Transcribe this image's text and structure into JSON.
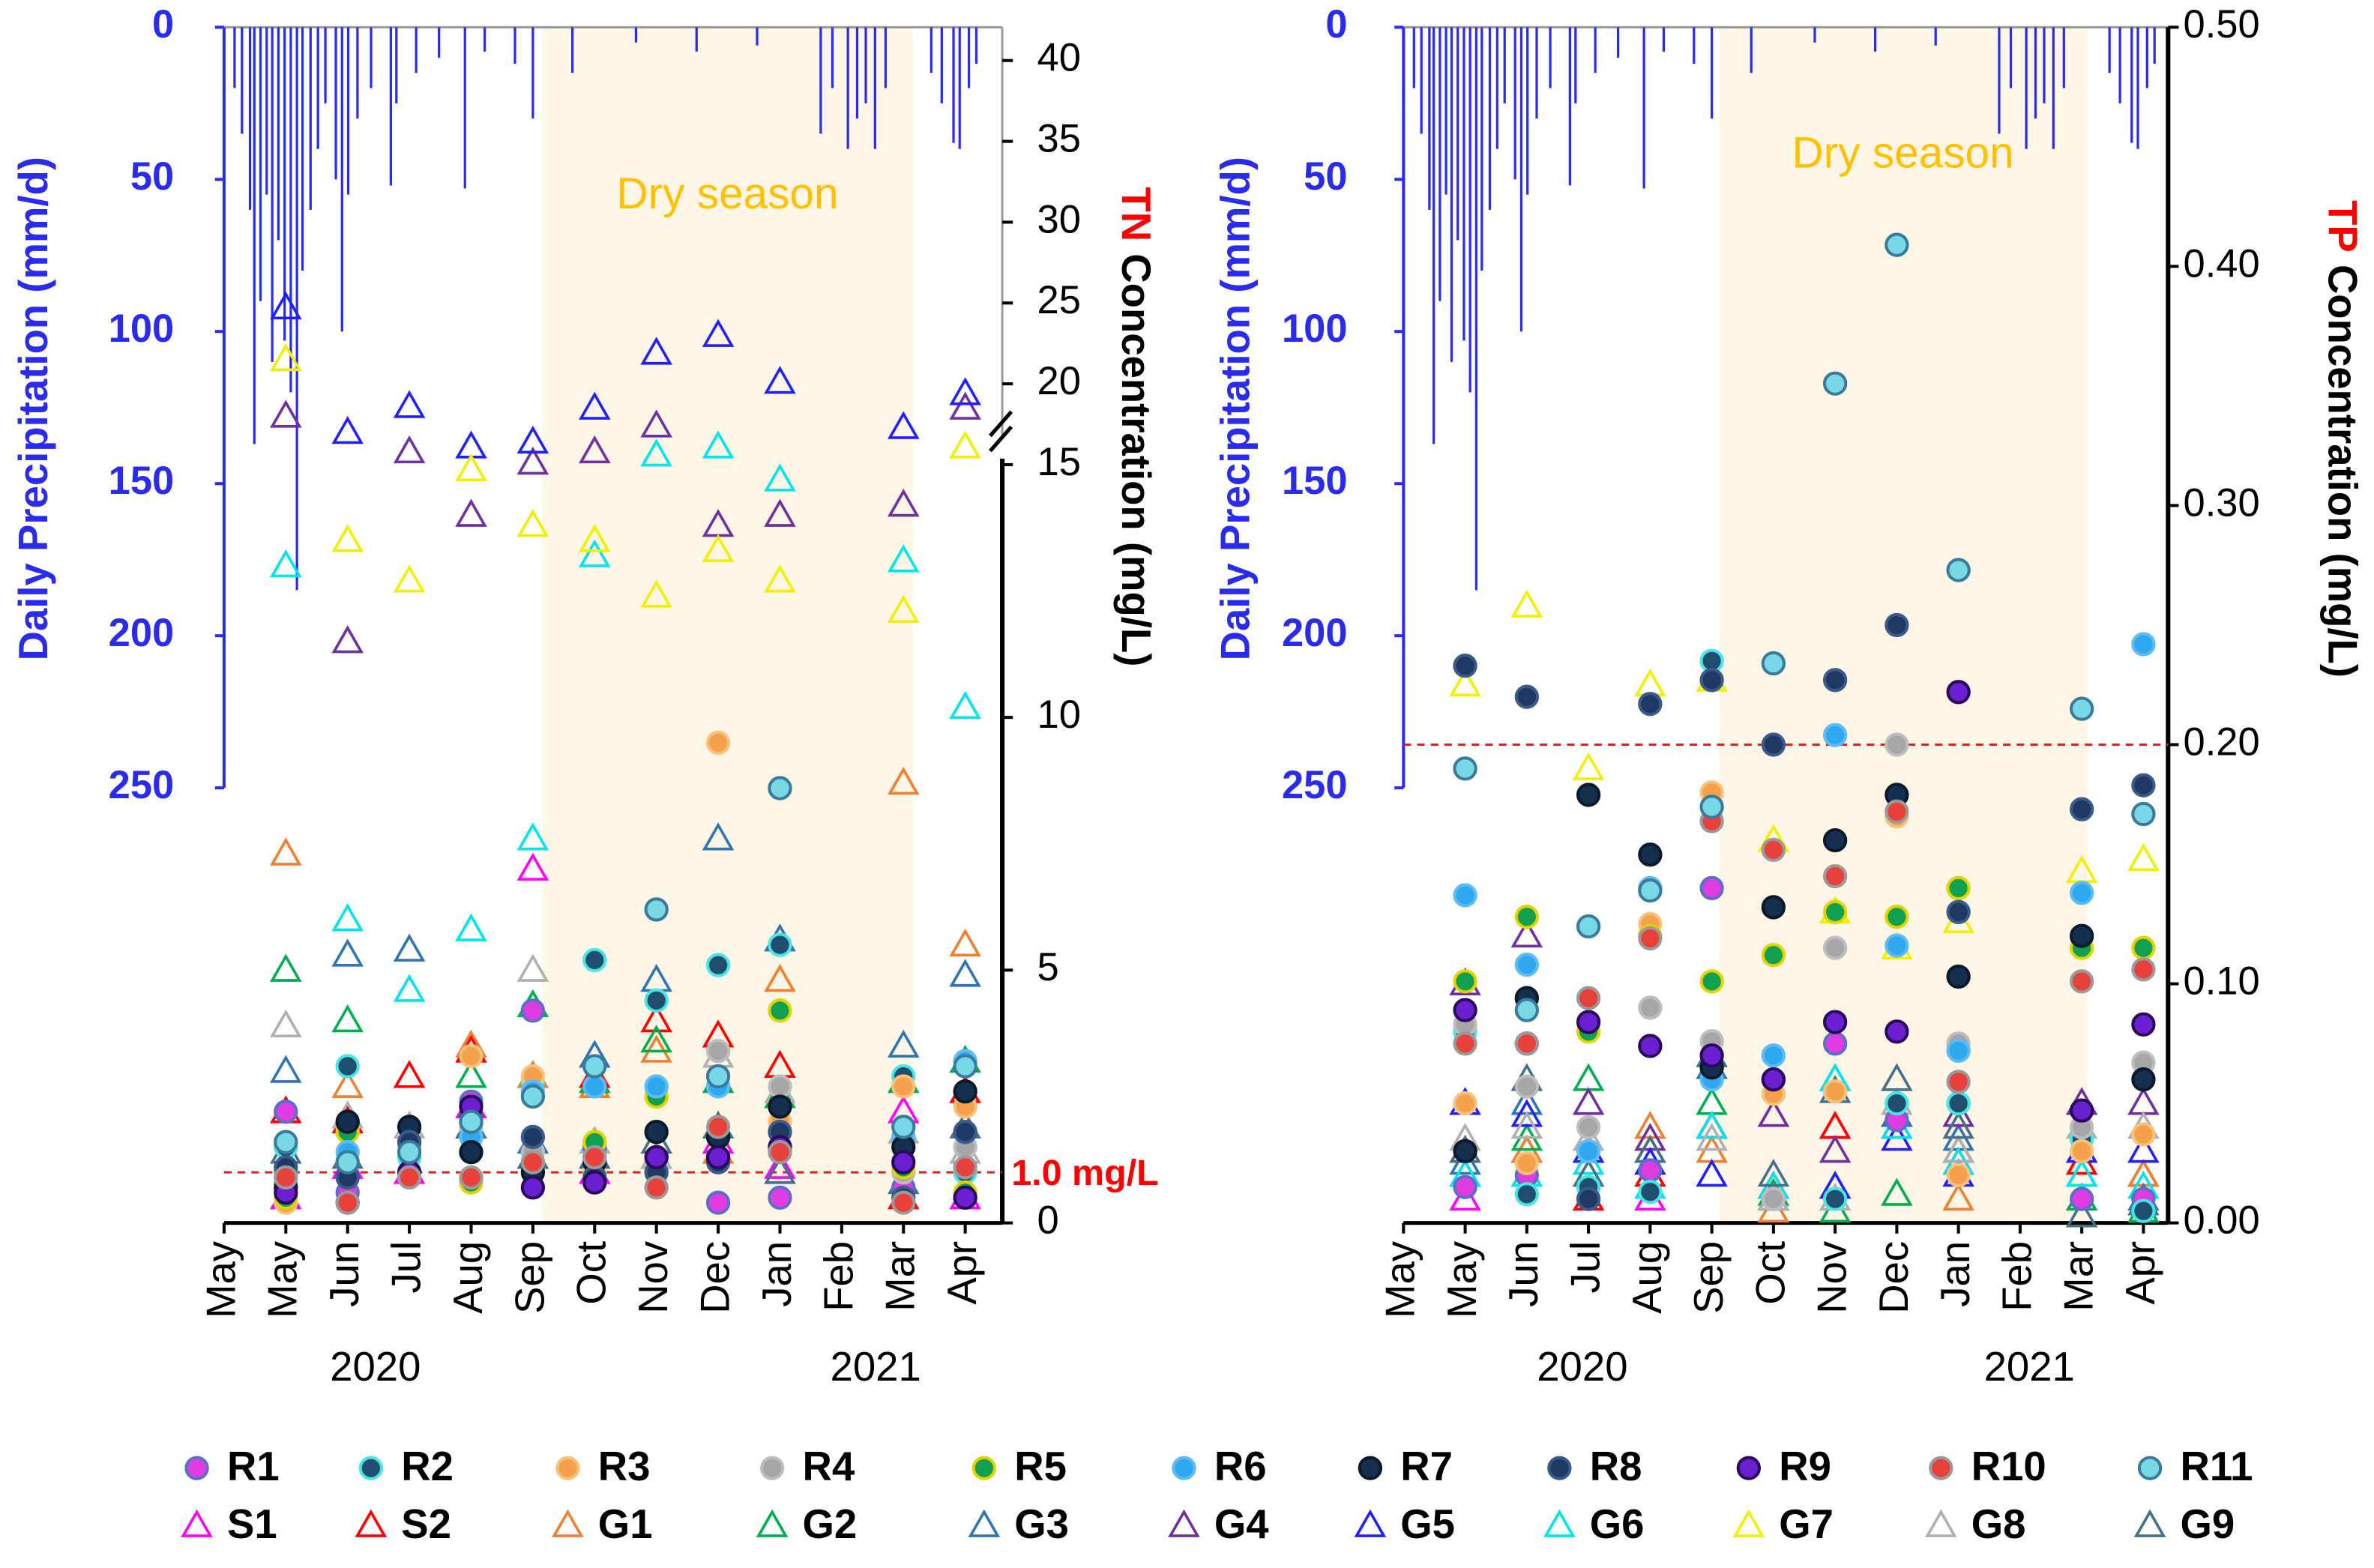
{
  "precipitation": {
    "label": "Daily Precipitation (mm/d)",
    "color": "#2b2bf0",
    "ylim": [
      0,
      393
    ],
    "yticks": [
      0,
      50,
      100,
      150,
      200,
      250
    ],
    "x": [
      0.17,
      0.29,
      0.42,
      0.49,
      0.59,
      0.69,
      0.78,
      0.88,
      0.98,
      1.08,
      1.18,
      1.27,
      1.4,
      1.52,
      1.64,
      1.81,
      1.91,
      2.01,
      2.16,
      2.38,
      2.7,
      2.79,
      3.11,
      3.48,
      3.9,
      4.22,
      4.71,
      5.0,
      5.64,
      6.67,
      7.65,
      8.63,
      9.66,
      9.85,
      10.1,
      10.25,
      10.39,
      10.54,
      10.71,
      11.45,
      11.62,
      11.81,
      11.91,
      12.06,
      12.18
    ],
    "values": [
      20,
      35,
      60,
      137,
      90,
      55,
      110,
      70,
      103,
      120,
      185,
      80,
      60,
      40,
      25,
      50,
      100,
      55,
      30,
      20,
      52,
      25,
      15,
      10,
      53,
      8,
      12,
      30,
      15,
      5,
      8,
      6,
      35,
      20,
      40,
      30,
      25,
      40,
      20,
      15,
      25,
      38,
      40,
      20,
      12
    ]
  },
  "legend": [
    {
      "name": "R1",
      "color": "#e13ce1",
      "edgecolor": "#5b6fc8",
      "marker": "circle"
    },
    {
      "name": "R2",
      "color": "#1f4e6e",
      "edgecolor": "#45e6e6",
      "marker": "circle"
    },
    {
      "name": "R3",
      "color": "#f5a04a",
      "edgecolor": "#f7c27a",
      "marker": "circle"
    },
    {
      "name": "R4",
      "color": "#a6a6a6",
      "edgecolor": "#bdbdbd",
      "marker": "circle"
    },
    {
      "name": "R5",
      "color": "#10a050",
      "edgecolor": "#e6d200",
      "marker": "circle"
    },
    {
      "name": "R6",
      "color": "#2fa8f0",
      "edgecolor": "#5cbcf4",
      "marker": "circle"
    },
    {
      "name": "R7",
      "color": "#14304e",
      "edgecolor": "#0a1a2a",
      "marker": "circle"
    },
    {
      "name": "R8",
      "color": "#1f3864",
      "edgecolor": "#3a5a8a",
      "marker": "circle"
    },
    {
      "name": "R9",
      "color": "#6a1fd0",
      "edgecolor": "#2a0a5a",
      "marker": "circle"
    },
    {
      "name": "R10",
      "color": "#e8403a",
      "edgecolor": "#9a9a9a",
      "marker": "circle"
    },
    {
      "name": "R11",
      "color": "#78d8e6",
      "edgecolor": "#3a7a9a",
      "marker": "circle"
    },
    {
      "name": "S1",
      "color": "#ff00ff",
      "marker": "triangle"
    },
    {
      "name": "S2",
      "color": "#ff0000",
      "marker": "triangle"
    },
    {
      "name": "G1",
      "color": "#f08030",
      "marker": "triangle"
    },
    {
      "name": "G2",
      "color": "#00b050",
      "marker": "triangle"
    },
    {
      "name": "G3",
      "color": "#2e75b6",
      "marker": "triangle"
    },
    {
      "name": "G4",
      "color": "#7030a0",
      "marker": "triangle"
    },
    {
      "name": "G5",
      "color": "#2020ff",
      "marker": "triangle"
    },
    {
      "name": "G6",
      "color": "#00e5ee",
      "marker": "triangle"
    },
    {
      "name": "G7",
      "color": "#f0f000",
      "marker": "triangle"
    },
    {
      "name": "G8",
      "color": "#b0b0b0",
      "marker": "triangle"
    },
    {
      "name": "G9",
      "color": "#44708a",
      "marker": "triangle"
    }
  ],
  "chart_data": [
    {
      "type": "scatter",
      "categories": [
        "May",
        "May",
        "Jun",
        "Jul",
        "Aug",
        "Sep",
        "Oct",
        "Nov",
        "Dec",
        "Jan",
        "Feb",
        "Mar",
        "Apr"
      ],
      "years": [
        "2020",
        "2021"
      ],
      "xlim": [
        0,
        12.6
      ],
      "ylabel": [
        "TN",
        "Concentration  (mg/L)"
      ],
      "ylim": [
        0,
        40
      ],
      "yticks": [
        0,
        5,
        10,
        15,
        20,
        25,
        30,
        35,
        40
      ],
      "axis_break": 15,
      "dry_season": {
        "label": "Dry season",
        "span": [
          5.15,
          11.15
        ]
      },
      "reference": {
        "value": 1.0,
        "label": "1.0 mg/L"
      },
      "series": [
        {
          "values": [
            null,
            2.2,
            0.6,
            null,
            2.4,
            4.2,
            1.5,
            1.3,
            0.4,
            0.5,
            null,
            0.7,
            0.5
          ]
        },
        {
          "values": [
            null,
            1.5,
            3.1,
            1.3,
            2.0,
            2.8,
            5.2,
            4.4,
            5.1,
            5.5,
            null,
            2.9,
            1.0
          ]
        },
        {
          "values": [
            null,
            0.4,
            1.9,
            1.6,
            3.3,
            2.9,
            1.0,
            2.5,
            9.5,
            2.0,
            null,
            2.7,
            2.3
          ]
        },
        {
          "values": [
            null,
            0.8,
            1.2,
            1.5,
            1.9,
            1.4,
            1.3,
            1.1,
            3.4,
            2.7,
            null,
            1.0,
            1.5
          ]
        },
        {
          "values": [
            null,
            0.5,
            1.8,
            1.6,
            0.8,
            1.2,
            1.6,
            2.5,
            1.7,
            4.2,
            null,
            1.1,
            0.6
          ]
        },
        {
          "values": [
            null,
            1.0,
            1.4,
            1.0,
            1.7,
            2.6,
            2.7,
            2.7,
            2.7,
            1.5,
            null,
            1.7,
            3.2
          ]
        },
        {
          "values": [
            null,
            0.7,
            2.0,
            1.9,
            1.4,
            1.0,
            1.2,
            1.8,
            1.7,
            2.3,
            null,
            1.5,
            2.6
          ]
        },
        {
          "values": [
            null,
            1.1,
            0.9,
            1.6,
            2.1,
            1.7,
            0.9,
            1.0,
            1.2,
            1.8,
            null,
            0.5,
            1.8
          ]
        },
        {
          "values": [
            null,
            0.6,
            0.4,
            1.0,
            2.3,
            0.7,
            0.8,
            1.3,
            1.3,
            1.5,
            null,
            1.2,
            0.5
          ]
        },
        {
          "values": [
            null,
            0.9,
            0.4,
            0.9,
            0.9,
            1.2,
            1.3,
            0.7,
            1.9,
            1.4,
            null,
            0.4,
            1.1
          ]
        },
        {
          "values": [
            null,
            1.6,
            1.2,
            1.4,
            2.0,
            2.5,
            3.1,
            6.2,
            2.9,
            8.6,
            null,
            1.9,
            3.1
          ]
        },
        {
          "values": [
            null,
            0.5,
            1.1,
            1.0,
            2.3,
            7.0,
            1.0,
            1.3,
            1.6,
            1.1,
            null,
            2.2,
            0.5
          ]
        },
        {
          "values": [
            null,
            2.2,
            2.0,
            2.9,
            3.4,
            1.3,
            2.9,
            4.0,
            3.7,
            3.1,
            null,
            0.5,
            2.6
          ]
        },
        {
          "values": [
            null,
            7.3,
            2.7,
            null,
            3.5,
            2.9,
            2.7,
            3.4,
            1.4,
            4.8,
            null,
            8.7,
            5.5
          ]
        },
        {
          "values": [
            null,
            5.0,
            4.0,
            null,
            2.9,
            4.3,
            2.8,
            3.6,
            2.8,
            2.5,
            null,
            2.8,
            3.2
          ]
        },
        {
          "values": [
            null,
            3.0,
            5.3,
            5.4,
            1.9,
            1.6,
            3.3,
            4.8,
            7.6,
            5.6,
            null,
            3.5,
            4.9
          ]
        },
        {
          "values": [
            null,
            18.0,
            11.5,
            15.8,
            14.0,
            15.1,
            15.8,
            17.4,
            13.8,
            14.0,
            null,
            14.2,
            18.5
          ]
        },
        {
          "values": [
            null,
            24.7,
            17.0,
            18.6,
            16.1,
            16.4,
            18.5,
            21.9,
            23.0,
            20.1,
            null,
            17.3,
            19.4
          ]
        },
        {
          "values": [
            null,
            13.0,
            6.0,
            4.6,
            5.8,
            7.6,
            13.2,
            15.6,
            16.1,
            14.7,
            null,
            13.1,
            10.2
          ]
        },
        {
          "values": [
            null,
            21.5,
            13.5,
            12.7,
            14.9,
            13.8,
            13.5,
            12.4,
            13.3,
            12.7,
            null,
            12.1,
            16.1
          ]
        },
        {
          "values": [
            null,
            3.9,
            2.1,
            1.9,
            null,
            5.0,
            1.6,
            1.3,
            3.3,
            2.6,
            null,
            1.8,
            1.4
          ]
        },
        {
          "values": [
            null,
            1.4,
            1.3,
            null,
            1.9,
            1.3,
            1.3,
            1.6,
            1.9,
            1.0,
            null,
            0.8,
            1.9
          ]
        }
      ]
    },
    {
      "type": "scatter",
      "categories": [
        "May",
        "May",
        "Jun",
        "Jul",
        "Aug",
        "Sep",
        "Oct",
        "Nov",
        "Dec",
        "Jan",
        "Feb",
        "Mar",
        "Apr"
      ],
      "years": [
        "2020",
        "2021"
      ],
      "xlim": [
        0,
        12.4
      ],
      "ylabel": [
        "TP",
        "Concentration  (mg/L)"
      ],
      "ylim": [
        0,
        0.5
      ],
      "yticks": [
        {
          "value": 0,
          "label": "0.00"
        },
        {
          "value": 0.1,
          "label": "0.10"
        },
        {
          "value": 0.2,
          "label": "0.20"
        },
        {
          "value": 0.3,
          "label": "0.30"
        },
        {
          "value": 0.4,
          "label": "0.40"
        },
        {
          "value": 0.5,
          "label": "0.50"
        }
      ],
      "dry_season": {
        "label": "Dry season",
        "span": [
          5.11,
          11.09
        ]
      },
      "reference": {
        "value": 0.2
      },
      "series": [
        {
          "values": [
            null,
            0.015,
            0.02,
            null,
            0.022,
            0.14,
            0.06,
            0.075,
            0.043,
            0.05,
            null,
            0.01,
            0.01
          ]
        },
        {
          "values": [
            null,
            0.08,
            0.012,
            0.015,
            0.013,
            0.235,
            0.01,
            0.01,
            0.05,
            0.05,
            null,
            0.035,
            0.005
          ]
        },
        {
          "values": [
            null,
            0.05,
            0.025,
            0.03,
            0.125,
            0.18,
            0.054,
            0.055,
            0.17,
            0.02,
            null,
            0.03,
            0.037
          ]
        },
        {
          "values": [
            null,
            0.083,
            0.057,
            0.04,
            0.09,
            0.076,
            0.01,
            0.115,
            0.2,
            0.075,
            null,
            0.04,
            0.067
          ]
        },
        {
          "values": [
            null,
            0.101,
            0.128,
            0.08,
            0.12,
            0.101,
            0.112,
            0.13,
            0.128,
            0.14,
            null,
            0.115,
            0.115
          ]
        },
        {
          "values": [
            null,
            0.137,
            0.108,
            0.03,
            0.14,
            0.06,
            0.07,
            0.204,
            0.116,
            0.072,
            null,
            0.138,
            0.242
          ]
        },
        {
          "values": [
            null,
            0.03,
            0.094,
            0.179,
            0.154,
            0.065,
            0.132,
            0.16,
            0.179,
            0.103,
            null,
            0.12,
            0.06
          ]
        },
        {
          "values": [
            null,
            0.233,
            0.22,
            0.01,
            0.217,
            0.227,
            0.2,
            0.227,
            0.25,
            0.13,
            null,
            0.173,
            0.183
          ]
        },
        {
          "values": [
            null,
            0.089,
            0.075,
            0.084,
            0.074,
            0.07,
            0.06,
            0.084,
            0.08,
            0.222,
            null,
            0.047,
            0.083
          ]
        },
        {
          "values": [
            null,
            0.075,
            0.075,
            0.094,
            0.119,
            0.168,
            0.156,
            0.145,
            0.172,
            0.059,
            null,
            0.101,
            0.106
          ]
        },
        {
          "values": [
            null,
            0.19,
            0.089,
            0.124,
            0.139,
            0.174,
            0.234,
            0.351,
            0.409,
            0.273,
            null,
            0.215,
            0.171
          ]
        },
        {
          "values": [
            null,
            0.01,
            0.02,
            0.01,
            0.01,
            0.04,
            0.045,
            0.04,
            0.045,
            0.025,
            null,
            0.01,
            0.005
          ]
        },
        {
          "values": [
            null,
            0.03,
            0.03,
            0.01,
            0.02,
            0.04,
            0.015,
            0.04,
            0.045,
            0.03,
            null,
            0.025,
            0.02
          ]
        },
        {
          "values": [
            null,
            0.03,
            0.03,
            0.02,
            0.04,
            0.03,
            0.005,
            0.015,
            0.04,
            0.01,
            null,
            0.03,
            0.02
          ]
        },
        {
          "values": [
            null,
            0.02,
            0.035,
            0.06,
            0.03,
            0.05,
            0.012,
            0.005,
            0.012,
            0.03,
            null,
            0.01,
            0.005
          ]
        },
        {
          "values": [
            null,
            0.025,
            0.05,
            0.03,
            0.03,
            0.065,
            0.01,
            0.06,
            0.045,
            0.035,
            null,
            0.02,
            0.01
          ]
        },
        {
          "values": [
            null,
            0.1,
            0.12,
            0.05,
            0.035,
            0.04,
            0.045,
            0.03,
            0.04,
            0.045,
            null,
            0.05,
            0.05
          ]
        },
        {
          "values": [
            null,
            0.05,
            0.045,
            0.03,
            0.025,
            0.02,
            0.01,
            0.015,
            0.035,
            0.02,
            null,
            0.03,
            0.03
          ]
        },
        {
          "values": [
            null,
            0.02,
            0.02,
            0.025,
            0.015,
            0.04,
            0.015,
            0.06,
            0.04,
            0.025,
            null,
            0.02,
            0.015
          ]
        },
        {
          "values": [
            null,
            0.225,
            0.258,
            0.19,
            0.225,
            0.227,
            0.16,
            0.13,
            0.115,
            0.126,
            null,
            0.147,
            0.152
          ]
        },
        {
          "values": [
            null,
            0.035,
            0.04,
            0.035,
            0.03,
            0.035,
            0.01,
            0.01,
            0.05,
            0.03,
            null,
            0.04,
            0.04
          ]
        },
        {
          "values": [
            null,
            0.03,
            0.06,
            0.02,
            0.03,
            0.07,
            0.02,
            0.055,
            0.06,
            0.04,
            null,
            0.003,
            0.008
          ]
        }
      ]
    }
  ]
}
